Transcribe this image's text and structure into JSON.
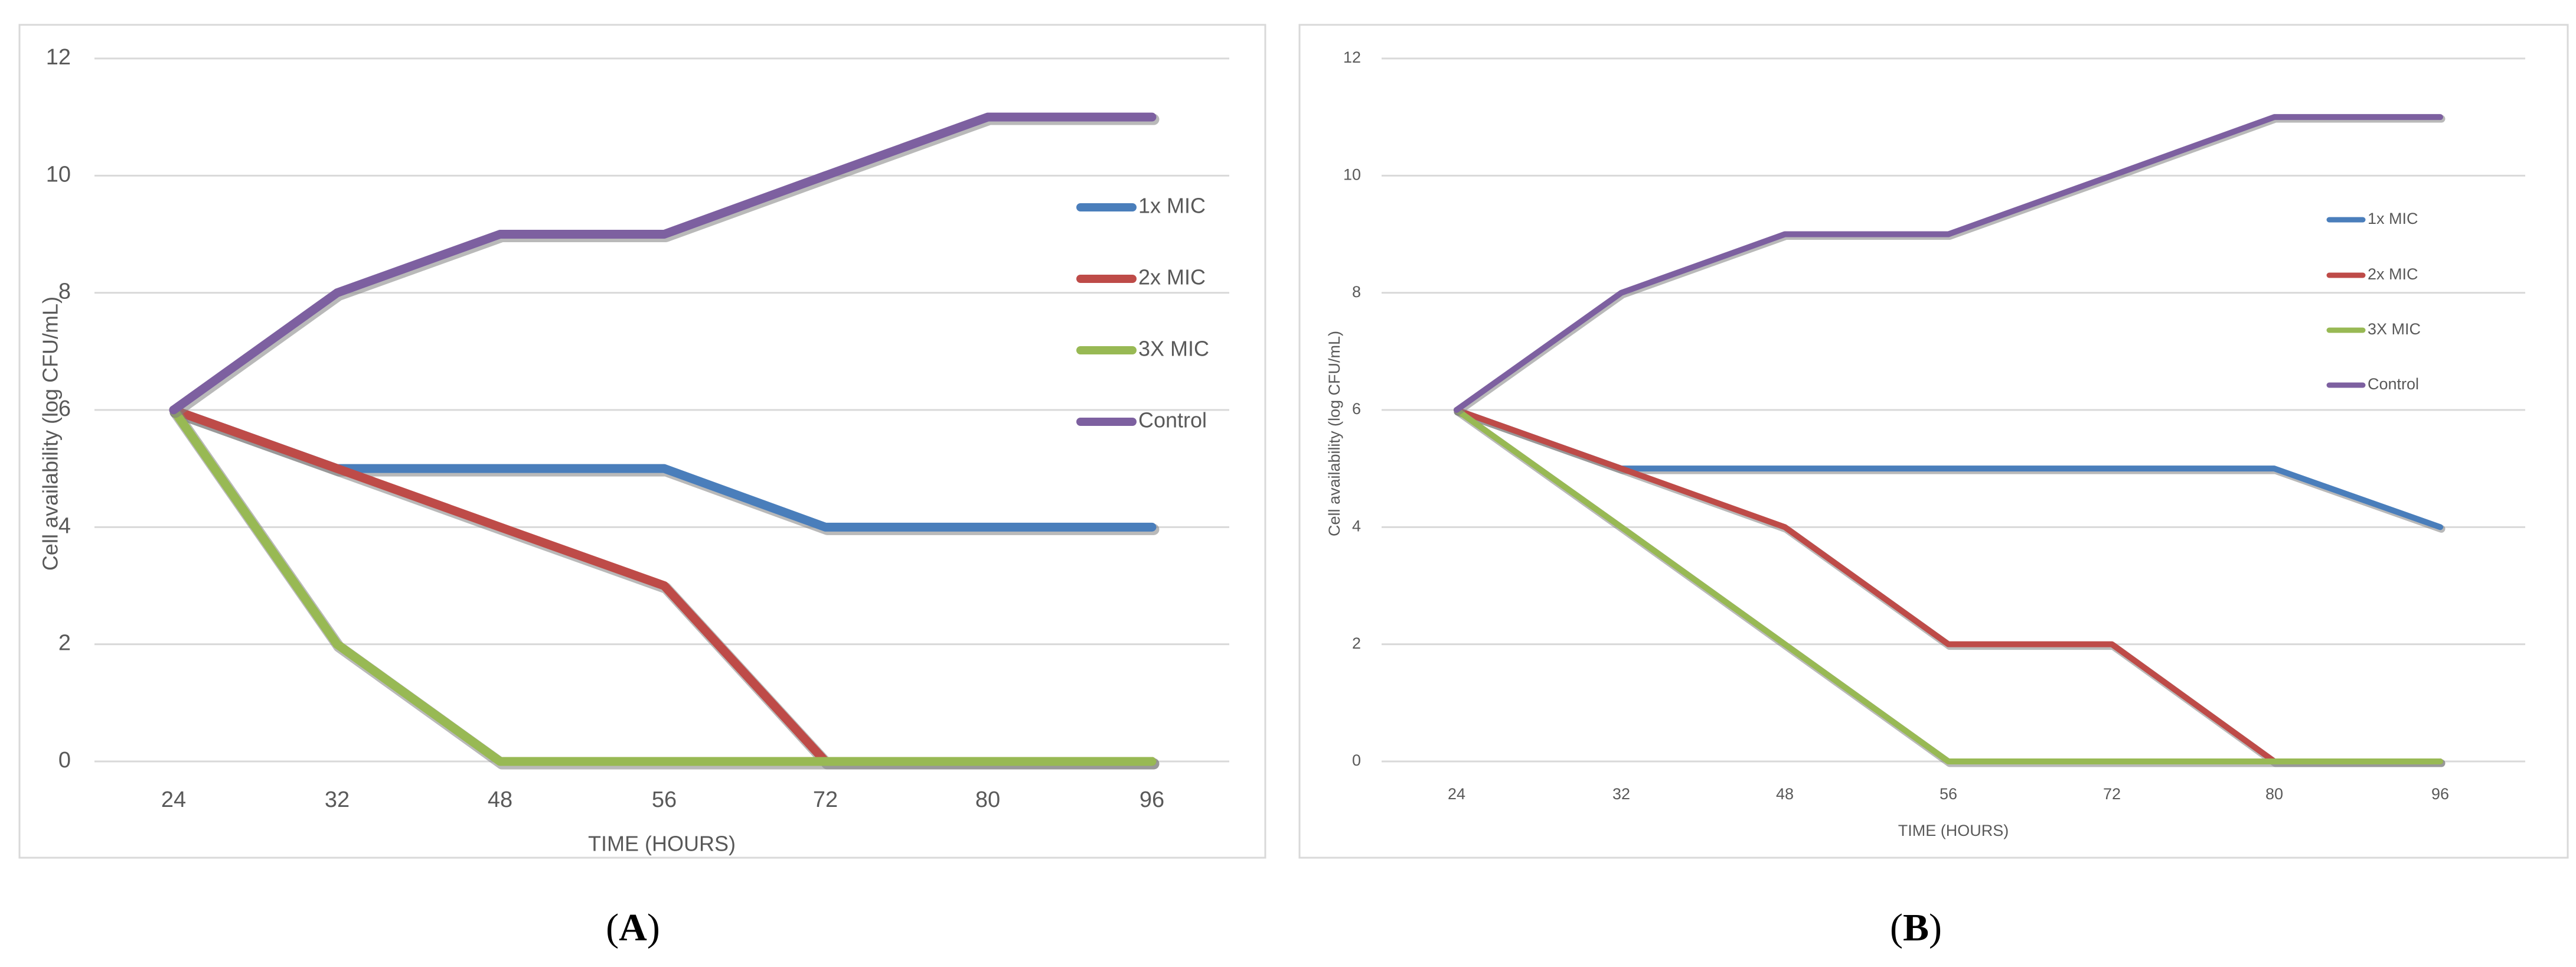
{
  "colors": {
    "series_1x": "#4a7ebb",
    "series_2x": "#be4b48",
    "series_3x": "#98b954",
    "series_control": "#7d60a0"
  },
  "chart_data": [
    {
      "type": "line",
      "panel_label_open": "(",
      "panel_label_letter": "A",
      "panel_label_close": ")",
      "title": "",
      "xlabel": "TIME (HOURS)",
      "ylabel": "Cell availability (log CFU/mL)",
      "categories": [
        "24",
        "32",
        "48",
        "56",
        "72",
        "80",
        "96"
      ],
      "yticks": [
        "0",
        "2",
        "4",
        "6",
        "8",
        "10",
        "12"
      ],
      "ylim": [
        0,
        12
      ],
      "grid": true,
      "legend_position": "right",
      "series": [
        {
          "name": "1x MIC",
          "color_key": "series_1x",
          "values": [
            6,
            5,
            5,
            5,
            4,
            4,
            4
          ]
        },
        {
          "name": "2x MIC",
          "color_key": "series_2x",
          "values": [
            6,
            5,
            4,
            3,
            0,
            0,
            0
          ]
        },
        {
          "name": "3X MIC",
          "color_key": "series_3x",
          "values": [
            6,
            2,
            0,
            0,
            0,
            0,
            0
          ]
        },
        {
          "name": "Control",
          "color_key": "series_control",
          "values": [
            6,
            8,
            9,
            9,
            10,
            11,
            11
          ]
        }
      ]
    },
    {
      "type": "line",
      "panel_label_open": "(",
      "panel_label_letter": "B",
      "panel_label_close": ")",
      "title": "",
      "xlabel": "TIME (HOURS)",
      "ylabel": "Cell availability (log CFU/mL)",
      "categories": [
        "24",
        "32",
        "48",
        "56",
        "72",
        "80",
        "96"
      ],
      "yticks": [
        "0",
        "2",
        "4",
        "6",
        "8",
        "10",
        "12"
      ],
      "ylim": [
        0,
        12
      ],
      "grid": true,
      "legend_position": "right",
      "series": [
        {
          "name": "1x MIC",
          "color_key": "series_1x",
          "values": [
            6,
            5,
            5,
            5,
            5,
            5,
            4
          ]
        },
        {
          "name": "2x MIC",
          "color_key": "series_2x",
          "values": [
            6,
            5,
            4,
            2,
            2,
            0,
            0
          ]
        },
        {
          "name": "3X MIC",
          "color_key": "series_3x",
          "values": [
            6,
            4,
            2,
            0,
            0,
            0,
            0
          ]
        },
        {
          "name": "Control",
          "color_key": "series_control",
          "values": [
            6,
            8,
            9,
            9,
            10,
            11,
            11
          ]
        }
      ]
    }
  ]
}
